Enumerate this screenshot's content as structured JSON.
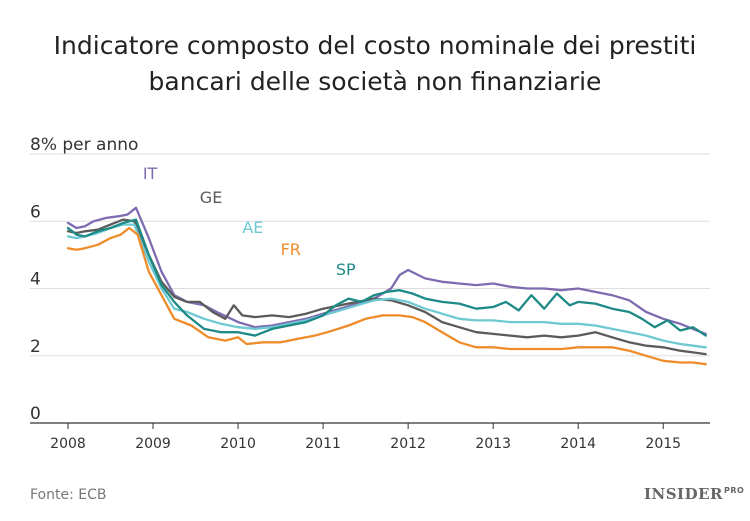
{
  "chart_data": {
    "type": "line",
    "title_line1": "Indicatore composto del costo nominale dei prestiti",
    "title_line2": "bancari delle società non finanziarie",
    "y_unit_label": "per anno",
    "xlabel": "",
    "ylabel": "",
    "source": "Fonte: ECB",
    "ylim": [
      0,
      8
    ],
    "xlim": [
      2008.0,
      2015.55
    ],
    "y_ticks": [
      0,
      2,
      4,
      6,
      8
    ],
    "y_tick_labels": [
      "0",
      "2",
      "4",
      "6",
      "8%"
    ],
    "x_ticks": [
      2008,
      2009,
      2010,
      2011,
      2012,
      2013,
      2014,
      2015
    ],
    "x_tick_labels": [
      "2008",
      "2009",
      "2010",
      "2011",
      "2012",
      "2013",
      "2014",
      "2015"
    ],
    "grid": true,
    "legend": "inline-labels",
    "series": [
      {
        "name": "IT",
        "color": "#7e6bb0",
        "points": [
          [
            2008.0,
            5.95
          ],
          [
            2008.1,
            5.8
          ],
          [
            2008.2,
            5.85
          ],
          [
            2008.3,
            6.0
          ],
          [
            2008.45,
            6.1
          ],
          [
            2008.6,
            6.15
          ],
          [
            2008.7,
            6.2
          ],
          [
            2008.8,
            6.4
          ],
          [
            2008.95,
            5.5
          ],
          [
            2009.1,
            4.5
          ],
          [
            2009.25,
            3.8
          ],
          [
            2009.4,
            3.6
          ],
          [
            2009.6,
            3.5
          ],
          [
            2009.75,
            3.3
          ],
          [
            2010.0,
            3.0
          ],
          [
            2010.2,
            2.85
          ],
          [
            2010.4,
            2.9
          ],
          [
            2010.6,
            3.0
          ],
          [
            2010.8,
            3.1
          ],
          [
            2011.0,
            3.25
          ],
          [
            2011.2,
            3.4
          ],
          [
            2011.4,
            3.55
          ],
          [
            2011.6,
            3.7
          ],
          [
            2011.8,
            4.0
          ],
          [
            2011.9,
            4.4
          ],
          [
            2012.0,
            4.55
          ],
          [
            2012.2,
            4.3
          ],
          [
            2012.4,
            4.2
          ],
          [
            2012.6,
            4.15
          ],
          [
            2012.8,
            4.1
          ],
          [
            2013.0,
            4.15
          ],
          [
            2013.2,
            4.05
          ],
          [
            2013.4,
            4.0
          ],
          [
            2013.6,
            4.0
          ],
          [
            2013.8,
            3.95
          ],
          [
            2014.0,
            4.0
          ],
          [
            2014.2,
            3.9
          ],
          [
            2014.4,
            3.8
          ],
          [
            2014.6,
            3.65
          ],
          [
            2014.8,
            3.3
          ],
          [
            2015.0,
            3.1
          ],
          [
            2015.2,
            2.95
          ],
          [
            2015.35,
            2.8
          ],
          [
            2015.5,
            2.65
          ]
        ]
      },
      {
        "name": "GE",
        "color": "#5b5b5b",
        "points": [
          [
            2008.0,
            5.7
          ],
          [
            2008.1,
            5.65
          ],
          [
            2008.2,
            5.7
          ],
          [
            2008.35,
            5.75
          ],
          [
            2008.5,
            5.9
          ],
          [
            2008.65,
            6.05
          ],
          [
            2008.78,
            6.0
          ],
          [
            2008.95,
            5.0
          ],
          [
            2009.1,
            4.2
          ],
          [
            2009.25,
            3.75
          ],
          [
            2009.4,
            3.6
          ],
          [
            2009.55,
            3.6
          ],
          [
            2009.7,
            3.3
          ],
          [
            2009.85,
            3.1
          ],
          [
            2009.95,
            3.5
          ],
          [
            2010.05,
            3.2
          ],
          [
            2010.2,
            3.15
          ],
          [
            2010.4,
            3.2
          ],
          [
            2010.6,
            3.15
          ],
          [
            2010.8,
            3.25
          ],
          [
            2011.0,
            3.4
          ],
          [
            2011.2,
            3.5
          ],
          [
            2011.4,
            3.6
          ],
          [
            2011.6,
            3.7
          ],
          [
            2011.8,
            3.65
          ],
          [
            2012.0,
            3.5
          ],
          [
            2012.2,
            3.3
          ],
          [
            2012.4,
            3.0
          ],
          [
            2012.6,
            2.85
          ],
          [
            2012.8,
            2.7
          ],
          [
            2013.0,
            2.65
          ],
          [
            2013.2,
            2.6
          ],
          [
            2013.4,
            2.55
          ],
          [
            2013.6,
            2.6
          ],
          [
            2013.8,
            2.55
          ],
          [
            2014.0,
            2.6
          ],
          [
            2014.2,
            2.7
          ],
          [
            2014.4,
            2.55
          ],
          [
            2014.6,
            2.4
          ],
          [
            2014.8,
            2.3
          ],
          [
            2015.0,
            2.25
          ],
          [
            2015.2,
            2.15
          ],
          [
            2015.35,
            2.1
          ],
          [
            2015.5,
            2.05
          ]
        ]
      },
      {
        "name": "AE",
        "color": "#6ec9d3",
        "points": [
          [
            2008.0,
            5.55
          ],
          [
            2008.1,
            5.5
          ],
          [
            2008.2,
            5.55
          ],
          [
            2008.35,
            5.65
          ],
          [
            2008.5,
            5.8
          ],
          [
            2008.65,
            5.9
          ],
          [
            2008.78,
            5.9
          ],
          [
            2008.95,
            4.8
          ],
          [
            2009.1,
            4.0
          ],
          [
            2009.25,
            3.4
          ],
          [
            2009.4,
            3.3
          ],
          [
            2009.6,
            3.1
          ],
          [
            2009.8,
            2.95
          ],
          [
            2010.0,
            2.85
          ],
          [
            2010.2,
            2.8
          ],
          [
            2010.4,
            2.85
          ],
          [
            2010.6,
            2.95
          ],
          [
            2010.8,
            3.05
          ],
          [
            2011.0,
            3.2
          ],
          [
            2011.2,
            3.35
          ],
          [
            2011.4,
            3.5
          ],
          [
            2011.6,
            3.65
          ],
          [
            2011.8,
            3.7
          ],
          [
            2012.0,
            3.6
          ],
          [
            2012.2,
            3.4
          ],
          [
            2012.4,
            3.25
          ],
          [
            2012.6,
            3.1
          ],
          [
            2012.8,
            3.05
          ],
          [
            2013.0,
            3.05
          ],
          [
            2013.2,
            3.0
          ],
          [
            2013.4,
            3.0
          ],
          [
            2013.6,
            3.0
          ],
          [
            2013.8,
            2.95
          ],
          [
            2014.0,
            2.95
          ],
          [
            2014.2,
            2.9
          ],
          [
            2014.4,
            2.8
          ],
          [
            2014.6,
            2.7
          ],
          [
            2014.8,
            2.6
          ],
          [
            2015.0,
            2.45
          ],
          [
            2015.2,
            2.35
          ],
          [
            2015.35,
            2.3
          ],
          [
            2015.5,
            2.25
          ]
        ]
      },
      {
        "name": "FR",
        "color": "#ef8c2a",
        "points": [
          [
            2008.0,
            5.2
          ],
          [
            2008.1,
            5.15
          ],
          [
            2008.2,
            5.2
          ],
          [
            2008.35,
            5.3
          ],
          [
            2008.5,
            5.5
          ],
          [
            2008.62,
            5.6
          ],
          [
            2008.72,
            5.8
          ],
          [
            2008.82,
            5.6
          ],
          [
            2008.95,
            4.5
          ],
          [
            2009.1,
            3.8
          ],
          [
            2009.25,
            3.1
          ],
          [
            2009.45,
            2.9
          ],
          [
            2009.65,
            2.55
          ],
          [
            2009.85,
            2.45
          ],
          [
            2010.0,
            2.55
          ],
          [
            2010.1,
            2.35
          ],
          [
            2010.3,
            2.4
          ],
          [
            2010.5,
            2.4
          ],
          [
            2010.7,
            2.5
          ],
          [
            2010.9,
            2.6
          ],
          [
            2011.05,
            2.7
          ],
          [
            2011.3,
            2.9
          ],
          [
            2011.5,
            3.1
          ],
          [
            2011.7,
            3.2
          ],
          [
            2011.9,
            3.2
          ],
          [
            2012.05,
            3.15
          ],
          [
            2012.2,
            3.0
          ],
          [
            2012.4,
            2.7
          ],
          [
            2012.6,
            2.4
          ],
          [
            2012.8,
            2.25
          ],
          [
            2013.0,
            2.25
          ],
          [
            2013.2,
            2.2
          ],
          [
            2013.4,
            2.2
          ],
          [
            2013.6,
            2.2
          ],
          [
            2013.8,
            2.2
          ],
          [
            2014.0,
            2.25
          ],
          [
            2014.2,
            2.25
          ],
          [
            2014.4,
            2.25
          ],
          [
            2014.6,
            2.15
          ],
          [
            2014.8,
            2.0
          ],
          [
            2015.0,
            1.85
          ],
          [
            2015.2,
            1.8
          ],
          [
            2015.35,
            1.8
          ],
          [
            2015.5,
            1.75
          ]
        ]
      },
      {
        "name": "SP",
        "color": "#1d8a86",
        "points": [
          [
            2008.0,
            5.8
          ],
          [
            2008.1,
            5.6
          ],
          [
            2008.2,
            5.55
          ],
          [
            2008.35,
            5.7
          ],
          [
            2008.5,
            5.8
          ],
          [
            2008.65,
            5.95
          ],
          [
            2008.8,
            6.05
          ],
          [
            2008.95,
            5.0
          ],
          [
            2009.1,
            4.1
          ],
          [
            2009.25,
            3.6
          ],
          [
            2009.4,
            3.2
          ],
          [
            2009.6,
            2.8
          ],
          [
            2009.8,
            2.7
          ],
          [
            2010.0,
            2.7
          ],
          [
            2010.2,
            2.6
          ],
          [
            2010.4,
            2.8
          ],
          [
            2010.6,
            2.9
          ],
          [
            2010.8,
            3.0
          ],
          [
            2011.0,
            3.2
          ],
          [
            2011.15,
            3.5
          ],
          [
            2011.3,
            3.7
          ],
          [
            2011.45,
            3.6
          ],
          [
            2011.6,
            3.8
          ],
          [
            2011.75,
            3.9
          ],
          [
            2011.9,
            3.95
          ],
          [
            2012.05,
            3.85
          ],
          [
            2012.2,
            3.7
          ],
          [
            2012.4,
            3.6
          ],
          [
            2012.6,
            3.55
          ],
          [
            2012.8,
            3.4
          ],
          [
            2013.0,
            3.45
          ],
          [
            2013.15,
            3.6
          ],
          [
            2013.3,
            3.35
          ],
          [
            2013.45,
            3.8
          ],
          [
            2013.6,
            3.4
          ],
          [
            2013.75,
            3.85
          ],
          [
            2013.9,
            3.5
          ],
          [
            2014.0,
            3.6
          ],
          [
            2014.2,
            3.55
          ],
          [
            2014.4,
            3.4
          ],
          [
            2014.6,
            3.3
          ],
          [
            2014.75,
            3.1
          ],
          [
            2014.9,
            2.85
          ],
          [
            2015.05,
            3.05
          ],
          [
            2015.2,
            2.75
          ],
          [
            2015.35,
            2.85
          ],
          [
            2015.5,
            2.6
          ]
        ]
      }
    ],
    "annotations": [
      {
        "text": "IT",
        "x": 2008.88,
        "y": 7.25,
        "color": "#7e6bb0"
      },
      {
        "text": "GE",
        "x": 2009.55,
        "y": 6.55,
        "color": "#5b5b5b"
      },
      {
        "text": "AE",
        "x": 2010.05,
        "y": 5.65,
        "color": "#6ec9d3"
      },
      {
        "text": "FR",
        "x": 2010.5,
        "y": 5.0,
        "color": "#ef8c2a"
      },
      {
        "text": "SP",
        "x": 2011.15,
        "y": 4.4,
        "color": "#1d8a86"
      }
    ],
    "brand_text": "INSIDER",
    "brand_suffix": "PRO"
  }
}
